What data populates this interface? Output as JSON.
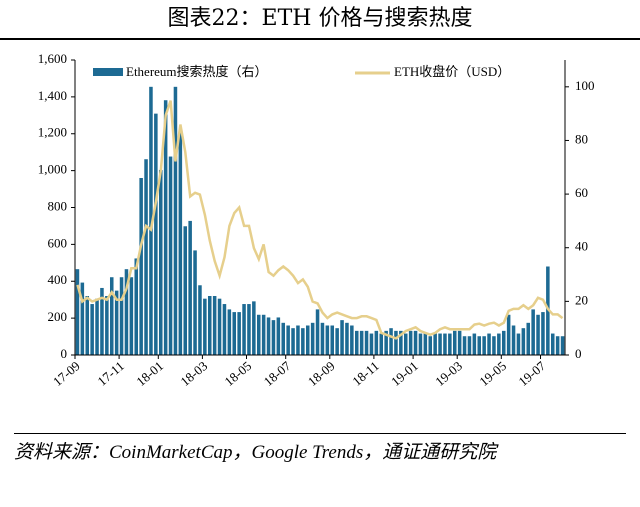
{
  "chart_data": {
    "type": "combo",
    "title": "图表22：ETH 价格与搜索热度",
    "source": "资料来源：CoinMarketCap，Google Trends，通证通研究院",
    "categories": [
      "17-09",
      null,
      null,
      null,
      null,
      null,
      null,
      null,
      null,
      "17-11",
      null,
      null,
      null,
      null,
      null,
      null,
      null,
      "18-01",
      null,
      null,
      null,
      null,
      null,
      null,
      null,
      null,
      "18-03",
      null,
      null,
      null,
      null,
      null,
      null,
      null,
      null,
      "18-05",
      null,
      null,
      null,
      null,
      null,
      null,
      null,
      "18-07",
      null,
      null,
      null,
      null,
      null,
      null,
      null,
      null,
      "18-09",
      null,
      null,
      null,
      null,
      null,
      null,
      null,
      null,
      "18-11",
      null,
      null,
      null,
      null,
      null,
      null,
      null,
      "19-01",
      null,
      null,
      null,
      null,
      null,
      null,
      null,
      null,
      "19-03",
      null,
      null,
      null,
      null,
      null,
      null,
      null,
      null,
      "19-05",
      null,
      null,
      null,
      null,
      null,
      null,
      null,
      "19-07",
      null,
      null,
      null,
      null
    ],
    "series": [
      {
        "name": "Ethereum搜索热度（右）",
        "type": "bar",
        "axis": "y2",
        "color": "#1d6a93",
        "values": [
          32,
          27,
          22,
          19,
          21,
          25,
          22,
          29,
          24,
          29,
          32,
          29,
          36,
          66,
          73,
          100,
          90,
          69,
          95,
          74,
          100,
          83,
          48,
          50,
          39,
          26,
          21,
          22,
          22,
          21,
          19,
          17,
          16,
          16,
          19,
          19,
          20,
          15,
          15,
          14,
          13,
          14,
          12,
          11,
          10,
          11,
          10,
          11,
          12,
          17,
          12,
          11,
          11,
          10,
          13,
          12,
          11,
          9,
          9,
          9,
          8,
          9,
          8,
          9,
          10,
          9,
          9,
          8,
          9,
          9,
          8,
          8,
          7,
          8,
          8,
          8,
          8,
          9,
          9,
          7,
          7,
          8,
          7,
          7,
          8,
          7,
          8,
          9,
          15,
          11,
          8,
          10,
          12,
          17,
          15,
          16,
          33,
          8,
          7,
          7
        ]
      },
      {
        "name": "ETH收盘价（USD）",
        "type": "line",
        "color": "#e6cf8c",
        "values": [
          380,
          290,
          310,
          290,
          300,
          310,
          300,
          340,
          300,
          300,
          360,
          470,
          470,
          600,
          700,
          680,
          830,
          1000,
          1300,
          1380,
          1050,
          1250,
          1100,
          860,
          880,
          870,
          760,
          620,
          510,
          430,
          530,
          700,
          770,
          800,
          700,
          700,
          580,
          520,
          600,
          450,
          430,
          460,
          480,
          460,
          430,
          390,
          410,
          370,
          290,
          280,
          230,
          200,
          220,
          230,
          220,
          210,
          200,
          200,
          210,
          210,
          200,
          190,
          120,
          110,
          100,
          90,
          110,
          130,
          140,
          150,
          130,
          120,
          110,
          120,
          140,
          150,
          140,
          140,
          140,
          140,
          140,
          165,
          170,
          160,
          170,
          175,
          160,
          175,
          240,
          250,
          250,
          270,
          250,
          270,
          310,
          300,
          250,
          220,
          220,
          200
        ]
      }
    ],
    "ylim": [
      0,
      1600
    ],
    "yticks": [
      0,
      200,
      400,
      600,
      800,
      {
        "value": 1000,
        "label": "1,000"
      },
      {
        "value": 1200,
        "label": "1,200"
      },
      {
        "value": 1400,
        "label": "1,400"
      },
      {
        "value": 1600,
        "label": "1,600"
      }
    ],
    "y2lim": [
      0,
      110
    ],
    "y2ticks": [
      0,
      20,
      40,
      60,
      80,
      100
    ],
    "legend": "top"
  }
}
